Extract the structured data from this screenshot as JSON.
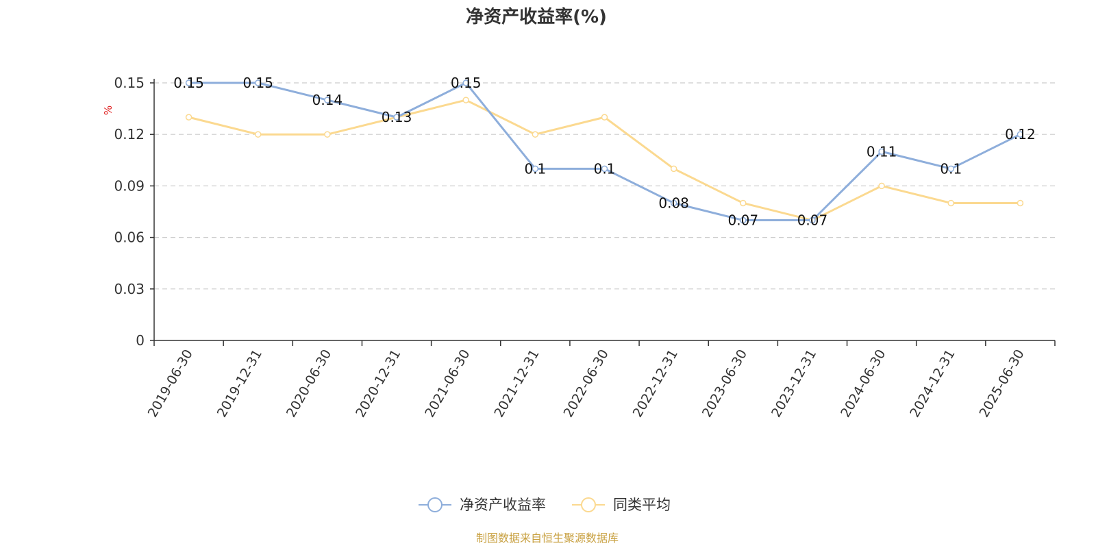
{
  "chart_data": {
    "type": "line",
    "title": "净资产收益率(%)",
    "ylabel": "%",
    "xlabel": "",
    "categories": [
      "2019-06-30",
      "2019-12-31",
      "2020-06-30",
      "2020-12-31",
      "2021-06-30",
      "2021-12-31",
      "2022-06-30",
      "2022-12-31",
      "2023-06-30",
      "2023-12-31",
      "2024-06-30",
      "2024-12-31",
      "2025-06-30"
    ],
    "ylim": [
      0,
      0.15
    ],
    "yticks": [
      "0",
      "0.03",
      "0.06",
      "0.09",
      "0.12",
      "0.15"
    ],
    "series": [
      {
        "name": "净资产收益率",
        "color": "#8eaedb",
        "values": [
          0.15,
          0.15,
          0.14,
          0.13,
          0.15,
          0.1,
          0.1,
          0.08,
          0.07,
          0.07,
          0.11,
          0.1,
          0.12
        ],
        "data_labels": [
          "0.15",
          "0.15",
          "0.14",
          "0.13",
          "0.15",
          "0.1",
          "0.1",
          "0.08",
          "0.07",
          "0.07",
          "0.11",
          "0.1",
          "0.12"
        ]
      },
      {
        "name": "同类平均",
        "color": "#fbd990",
        "values": [
          0.13,
          0.12,
          0.12,
          0.13,
          0.14,
          0.12,
          0.13,
          0.1,
          0.08,
          0.07,
          0.09,
          0.08,
          0.08
        ]
      }
    ],
    "grid": true,
    "legend_position": "bottom"
  },
  "source_text": "制图数据来自恒生聚源数据库",
  "colors": {
    "axis": "#333333",
    "grid": "#cccccc",
    "unit": "#e02020",
    "source": "#c8a040"
  }
}
